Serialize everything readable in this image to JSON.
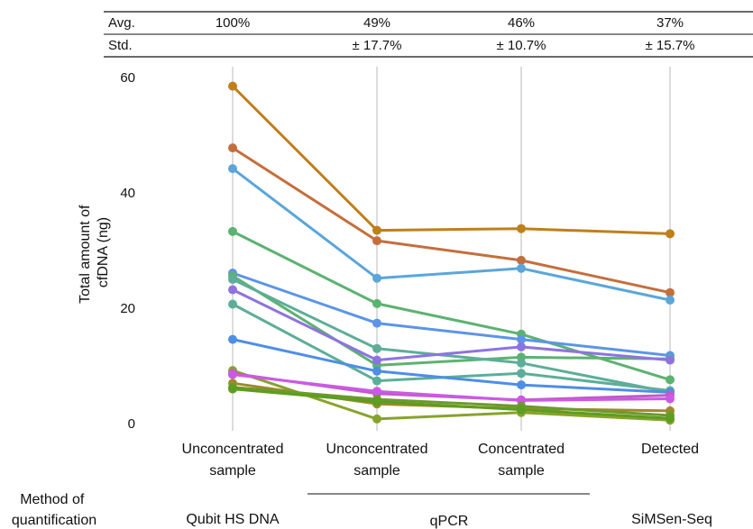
{
  "chart_data": {
    "type": "line",
    "ylabel": "Total amount of\ncfDNA (ng)",
    "ylim": [
      0,
      60
    ],
    "yticks": [
      0,
      20,
      40,
      60
    ],
    "grid": "vertical",
    "categories": [
      "Unconcentrated\nsample",
      "Unconcentrated\nsample",
      "Concentrated\nsample",
      "Detected"
    ],
    "series": [
      {
        "color": "#bf7f1c",
        "values": [
          58.5,
          33.5,
          33.8,
          32.9
        ]
      },
      {
        "color": "#c56e3d",
        "values": [
          47.8,
          31.7,
          28.3,
          22.7
        ]
      },
      {
        "color": "#5aa6d9",
        "values": [
          44.2,
          25.2,
          26.9,
          21.4
        ]
      },
      {
        "color": "#5cb270",
        "values": [
          33.3,
          20.8,
          15.5,
          7.6
        ]
      },
      {
        "color": "#5b95e8",
        "values": [
          26.1,
          17.4,
          14.6,
          11.8
        ]
      },
      {
        "color": "#5cb270",
        "values": [
          25.6,
          10.1,
          11.5,
          11.2
        ]
      },
      {
        "color": "#5cae98",
        "values": [
          25.0,
          13.0,
          10.5,
          5.4
        ]
      },
      {
        "color": "#8e73e0",
        "values": [
          23.2,
          11.0,
          13.3,
          11.0
        ]
      },
      {
        "color": "#5cae98",
        "values": [
          20.7,
          7.4,
          8.7,
          5.7
        ]
      },
      {
        "color": "#4d8ee6",
        "values": [
          14.6,
          9.1,
          6.7,
          5.4
        ]
      },
      {
        "color": "#88a32b",
        "values": [
          9.2,
          0.8,
          1.9,
          0.6
        ]
      },
      {
        "color": "#c15ac6",
        "values": [
          8.7,
          5.2,
          4.1,
          4.9
        ]
      },
      {
        "color": "#cc59e6",
        "values": [
          8.5,
          5.6,
          4.0,
          4.3
        ]
      },
      {
        "color": "#a0892b",
        "values": [
          7.0,
          3.4,
          2.6,
          2.2
        ]
      },
      {
        "color": "#6d9a2c",
        "values": [
          6.3,
          4.2,
          3.0,
          1.4
        ]
      },
      {
        "color": "#5d9d1f",
        "values": [
          6.0,
          3.8,
          2.4,
          0.9
        ]
      }
    ],
    "summary": {
      "avg_label": "Avg.",
      "std_label": "Std.",
      "avg": [
        "100%",
        "49%",
        "46%",
        "37%"
      ],
      "std": [
        "",
        "± 17.7%",
        "± 10.7%",
        "± 15.7%"
      ]
    },
    "methods": {
      "label": "Method of\nquantification",
      "groups": [
        "Qubit HS DNA",
        "qPCR",
        "SiMSen-Seq"
      ]
    }
  }
}
